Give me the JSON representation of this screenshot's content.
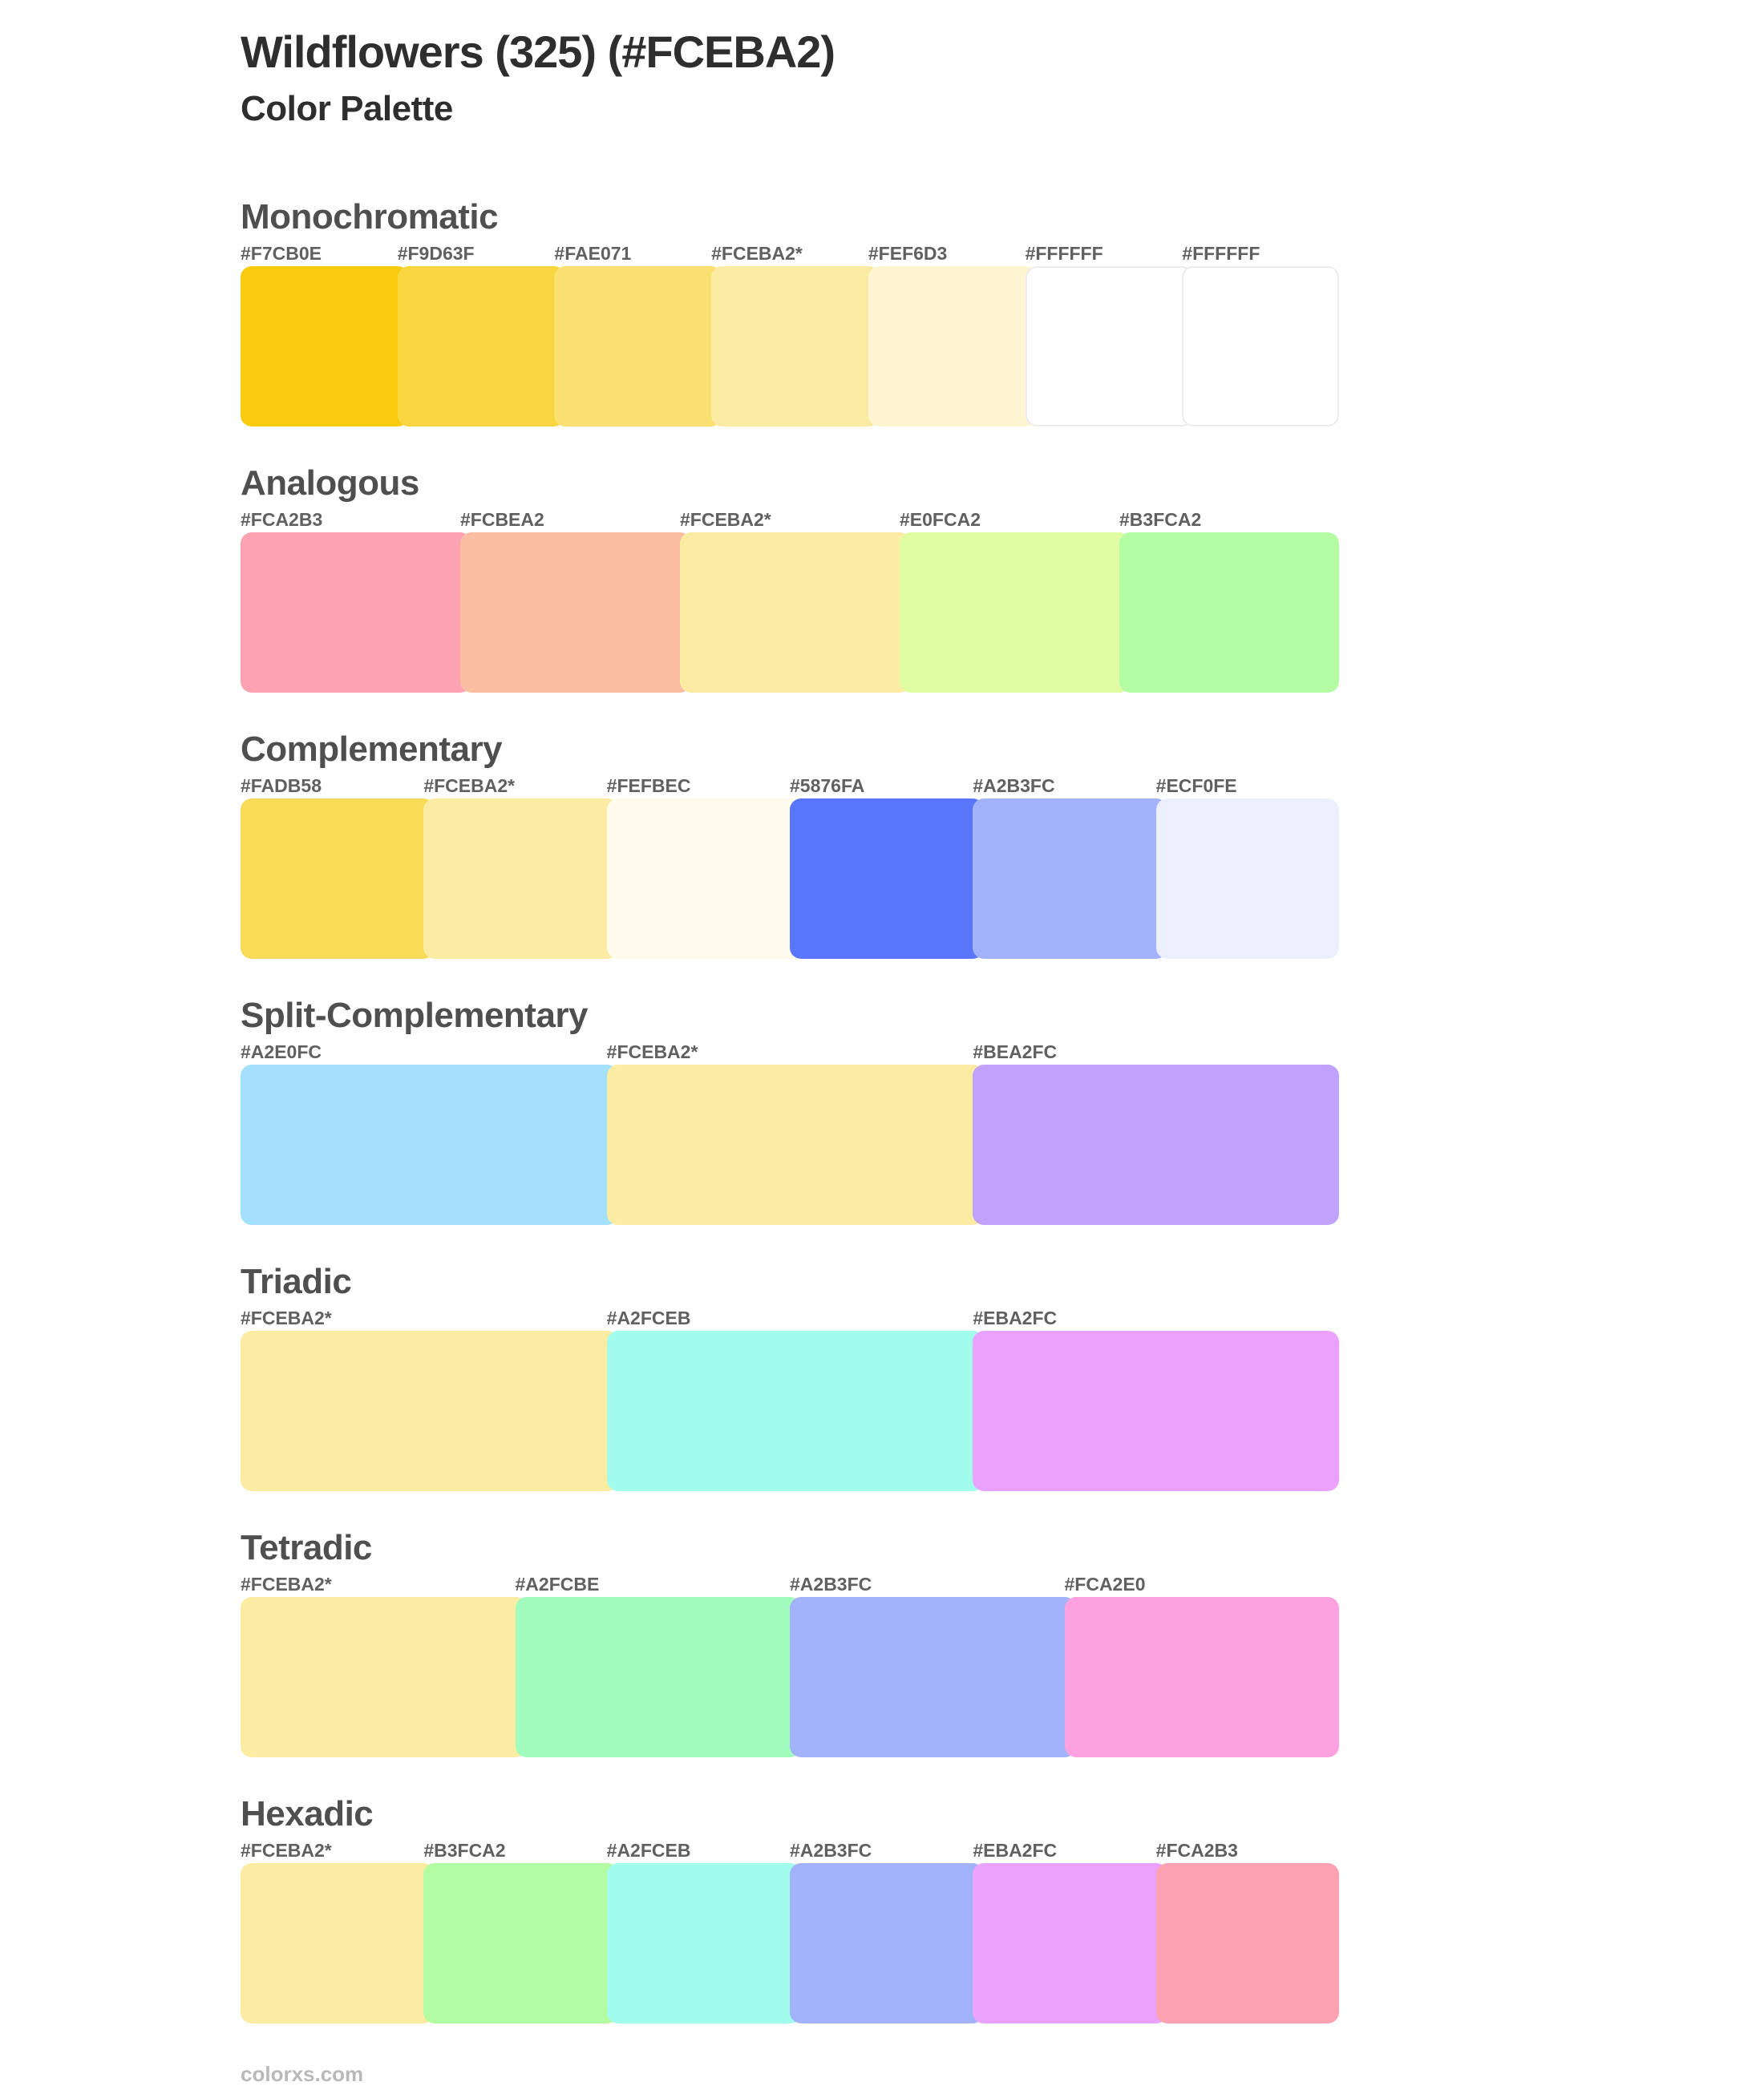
{
  "page": {
    "title": "Wildflowers (325) (#FCEBA2)",
    "subtitle": "Color Palette",
    "base_color": "#FCEBA2",
    "footer": "colorxs.com"
  },
  "theme": {
    "background": "#FFFFFF",
    "title_text": "#2E2E2E",
    "heading_text": "#4F4F4F",
    "hex_label_text": "#606060",
    "footer_text": "#B9B9B9",
    "white_swatch_border": "#ECECEC"
  },
  "sections": [
    {
      "name": "Monochromatic",
      "swatches": [
        {
          "label": "#F7CB0E",
          "color": "#F7CB0E"
        },
        {
          "label": "#F9D63F",
          "color": "#F9D63F"
        },
        {
          "label": "#FAE071",
          "color": "#FAE071"
        },
        {
          "label": "#FCEBA2*",
          "color": "#FCEBA2"
        },
        {
          "label": "#FEF6D3",
          "color": "#FEF6D3"
        },
        {
          "label": "#FFFFFF",
          "color": "#FFFFFF"
        },
        {
          "label": "#FFFFFF",
          "color": "#FFFFFF"
        }
      ]
    },
    {
      "name": "Analogous",
      "swatches": [
        {
          "label": "#FCA2B3",
          "color": "#FCA2B3"
        },
        {
          "label": "#FCBEA2",
          "color": "#FCBEA2"
        },
        {
          "label": "#FCEBA2*",
          "color": "#FCEBA2"
        },
        {
          "label": "#E0FCA2",
          "color": "#E0FCA2"
        },
        {
          "label": "#B3FCA2",
          "color": "#B3FCA2"
        }
      ]
    },
    {
      "name": "Complementary",
      "swatches": [
        {
          "label": "#FADB58",
          "color": "#FADB58"
        },
        {
          "label": "#FCEBA2*",
          "color": "#FCEBA2"
        },
        {
          "label": "#FEFBEC",
          "color": "#FEFBEC"
        },
        {
          "label": "#5876FA",
          "color": "#5876FA"
        },
        {
          "label": "#A2B3FC",
          "color": "#A2B3FC"
        },
        {
          "label": "#ECF0FE",
          "color": "#ECF0FE"
        }
      ]
    },
    {
      "name": "Split-Complementary",
      "swatches": [
        {
          "label": "#A2E0FC",
          "color": "#A2E0FC"
        },
        {
          "label": "#FCEBA2*",
          "color": "#FCEBA2"
        },
        {
          "label": "#BEA2FC",
          "color": "#BEA2FC"
        }
      ]
    },
    {
      "name": "Triadic",
      "swatches": [
        {
          "label": "#FCEBA2*",
          "color": "#FCEBA2"
        },
        {
          "label": "#A2FCEB",
          "color": "#A2FCEB"
        },
        {
          "label": "#EBA2FC",
          "color": "#EBA2FC"
        }
      ]
    },
    {
      "name": "Tetradic",
      "swatches": [
        {
          "label": "#FCEBA2*",
          "color": "#FCEBA2"
        },
        {
          "label": "#A2FCBE",
          "color": "#A2FCBE"
        },
        {
          "label": "#A2B3FC",
          "color": "#A2B3FC"
        },
        {
          "label": "#FCA2E0",
          "color": "#FCA2E0"
        }
      ]
    },
    {
      "name": "Hexadic",
      "swatches": [
        {
          "label": "#FCEBA2*",
          "color": "#FCEBA2"
        },
        {
          "label": "#B3FCA2",
          "color": "#B3FCA2"
        },
        {
          "label": "#A2FCEB",
          "color": "#A2FCEB"
        },
        {
          "label": "#A2B3FC",
          "color": "#A2B3FC"
        },
        {
          "label": "#EBA2FC",
          "color": "#EBA2FC"
        },
        {
          "label": "#FCA2B3",
          "color": "#FCA2B3"
        }
      ]
    }
  ]
}
